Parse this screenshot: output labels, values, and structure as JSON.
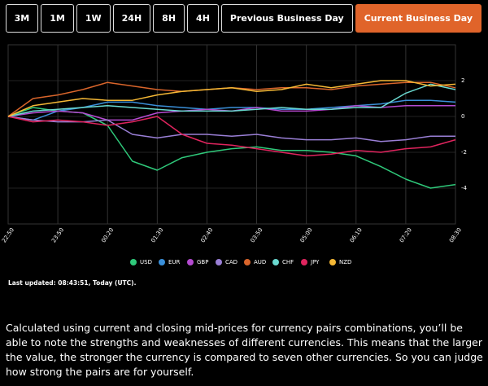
{
  "buttons": [
    "3M",
    "1M",
    "1W",
    "24H",
    "8H",
    "4H",
    "Previous Business Day",
    "Current Business Day"
  ],
  "chart_data": {
    "type": "line",
    "categories": [
      "22:50",
      null,
      "23:50",
      null,
      "00:20",
      null,
      "01:30",
      null,
      "02:40",
      null,
      "03:50",
      null,
      "05:00",
      null,
      "06:10",
      null,
      "07:20",
      null,
      "08:30"
    ],
    "series": [
      {
        "name": "USD",
        "color": "#2fc97a",
        "values": [
          0,
          0.5,
          0.3,
          0.2,
          -0.5,
          -2.5,
          -3.0,
          -2.3,
          -2.0,
          -1.8,
          -1.7,
          -1.9,
          -1.9,
          -2.0,
          -2.2,
          -2.8,
          -3.5,
          -4.0,
          -3.8
        ]
      },
      {
        "name": "EUR",
        "color": "#3a8fd9",
        "values": [
          0,
          -0.2,
          0.3,
          0.5,
          0.8,
          0.8,
          0.6,
          0.5,
          0.4,
          0.5,
          0.5,
          0.4,
          0.4,
          0.5,
          0.6,
          0.7,
          0.9,
          0.9,
          0.8
        ]
      },
      {
        "name": "GBP",
        "color": "#b44ad0",
        "values": [
          0,
          0.2,
          0.3,
          0.2,
          -0.2,
          -0.2,
          0.2,
          0.3,
          0.4,
          0.3,
          0.5,
          0.3,
          0.3,
          0.4,
          0.6,
          0.5,
          0.6,
          0.6,
          0.6
        ]
      },
      {
        "name": "CAD",
        "color": "#9a7fd6",
        "values": [
          0,
          -0.2,
          -0.3,
          -0.3,
          -0.2,
          -1.0,
          -1.2,
          -1.0,
          -1.0,
          -1.1,
          -1.0,
          -1.2,
          -1.3,
          -1.3,
          -1.2,
          -1.4,
          -1.3,
          -1.1,
          -1.1
        ]
      },
      {
        "name": "AUD",
        "color": "#d9652b",
        "values": [
          0,
          1.0,
          1.2,
          1.5,
          1.9,
          1.7,
          1.5,
          1.4,
          1.5,
          1.6,
          1.5,
          1.6,
          1.6,
          1.5,
          1.7,
          1.8,
          1.9,
          1.9,
          1.6
        ]
      },
      {
        "name": "CHF",
        "color": "#6ad9d0",
        "values": [
          0,
          0.3,
          0.4,
          0.5,
          0.6,
          0.5,
          0.4,
          0.3,
          0.3,
          0.3,
          0.4,
          0.5,
          0.4,
          0.4,
          0.5,
          0.5,
          1.3,
          1.8,
          1.5
        ]
      },
      {
        "name": "JPY",
        "color": "#e0245e",
        "values": [
          0,
          -0.3,
          -0.2,
          -0.3,
          -0.5,
          -0.3,
          0.0,
          -1.0,
          -1.5,
          -1.6,
          -1.8,
          -2.0,
          -2.2,
          -2.1,
          -1.9,
          -2.0,
          -1.8,
          -1.7,
          -1.3
        ]
      },
      {
        "name": "NZD",
        "color": "#f5b835",
        "values": [
          0,
          0.6,
          0.8,
          1.0,
          0.9,
          0.9,
          1.2,
          1.4,
          1.5,
          1.6,
          1.4,
          1.5,
          1.8,
          1.6,
          1.8,
          2.0,
          2.0,
          1.7,
          1.8
        ]
      }
    ],
    "ylim": [
      -6,
      4
    ],
    "yticks": [
      2,
      0,
      -2,
      -4
    ],
    "grid": true
  },
  "last_updated": "Last updated: 08:43:51, Today (UTC).",
  "description": "Calculated using current and closing mid-prices for currency pairs combinations, you’ll be able to note the strengths and weaknesses of different currencies. This means that the larger the value, the stronger the currency is compared to seven other currencies. So you can judge how strong the pairs are for yourself."
}
